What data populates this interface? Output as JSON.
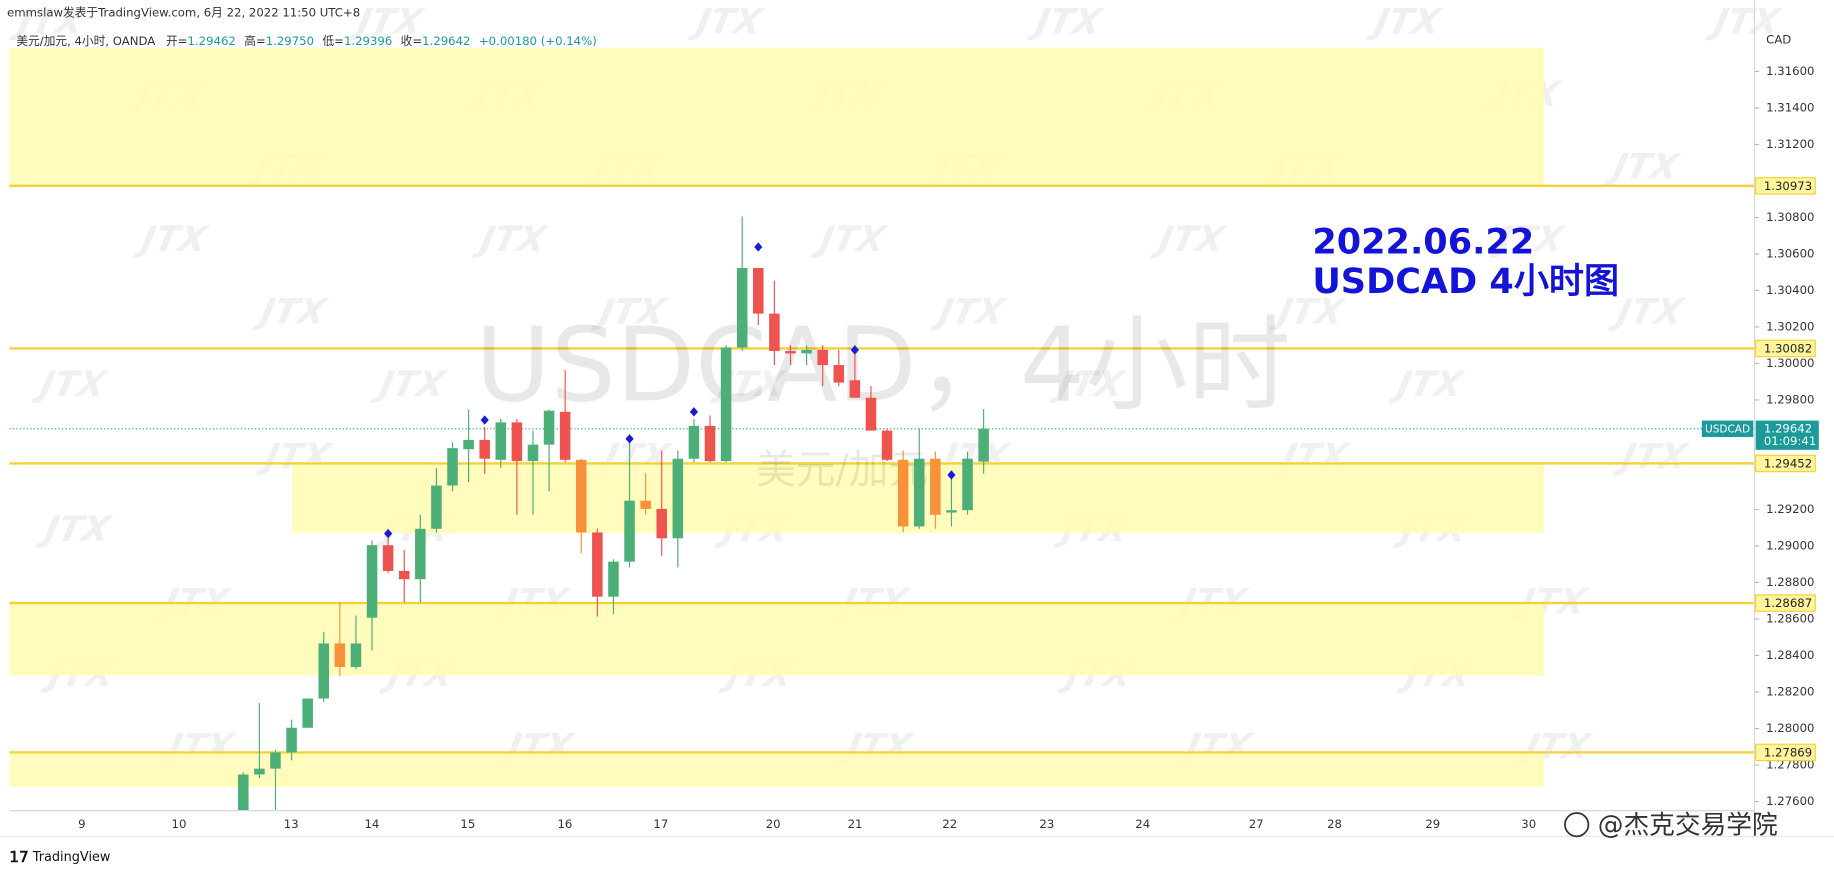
{
  "header": {
    "publisher": "emmslaw发表于TradingView.com,  6月 22, 2022 11:50 UTC+8"
  },
  "legend": {
    "symbol": "美元/加元, 4小时, OANDA",
    "open_label": "开=",
    "open": "1.29462",
    "high_label": "高=",
    "high": "1.29750",
    "low_label": "低=",
    "low": "1.29396",
    "close_label": "收=",
    "close": "1.29642",
    "change": "+0.00180 (+0.14%)"
  },
  "chart_data": {
    "type": "candlestick",
    "symbol": "USDCAD",
    "currency": "CAD",
    "countdown": "01:09:41",
    "last_price": 1.29642,
    "x_labels": [
      "9",
      "10",
      "13",
      "14",
      "15",
      "16",
      "17",
      "20",
      "21",
      "22",
      "23",
      "24",
      "27",
      "28",
      "29",
      "30"
    ],
    "open": [
      1.2755,
      1.27748,
      1.2778,
      1.27869,
      1.28004,
      1.28164,
      1.28466,
      1.28337,
      1.28607,
      1.29004,
      1.28863,
      1.28818,
      1.29094,
      1.29331,
      1.2953,
      1.29581,
      1.29472,
      1.29677,
      1.29465,
      1.29555,
      1.29735,
      1.29472,
      1.29074,
      1.28722,
      1.28914,
      1.29248,
      1.29203,
      1.29042,
      1.29478,
      1.29658,
      1.29465,
      1.30087,
      1.30523,
      1.30273,
      1.30068,
      1.30055,
      1.30074,
      1.29991,
      1.29908,
      1.29812,
      1.29632,
      1.29472,
      1.29107,
      1.29478,
      1.29183,
      1.29196,
      1.29462
    ],
    "high": [
      1.2776,
      1.28139,
      1.27882,
      1.28049,
      1.28164,
      1.2853,
      1.2869,
      1.28619,
      1.2903,
      1.29074,
      1.28978,
      1.29171,
      1.29427,
      1.29568,
      1.29748,
      1.29651,
      1.29696,
      1.29696,
      1.29632,
      1.29748,
      1.29965,
      1.29478,
      1.29094,
      1.28927,
      1.29587,
      1.29401,
      1.29523,
      1.29523,
      1.29696,
      1.29715,
      1.301,
      1.30805,
      1.30523,
      1.30453,
      1.301,
      1.301,
      1.301,
      1.30074,
      1.301,
      1.29876,
      1.29645,
      1.29523,
      1.29645,
      1.29517,
      1.29401,
      1.29517,
      1.2975
    ],
    "low": [
      1.2755,
      1.27728,
      1.2755,
      1.27825,
      1.28004,
      1.28145,
      1.28286,
      1.28324,
      1.28427,
      1.2885,
      1.2869,
      1.2869,
      1.29074,
      1.29299,
      1.2935,
      1.29395,
      1.29427,
      1.29171,
      1.29171,
      1.29299,
      1.29459,
      1.28959,
      1.28613,
      1.28626,
      1.28882,
      1.29171,
      1.28946,
      1.28882,
      1.29459,
      1.29459,
      1.29459,
      1.30068,
      1.3021,
      1.29991,
      1.29991,
      1.29991,
      1.29876,
      1.29876,
      1.29812,
      1.29632,
      1.29465,
      1.29074,
      1.29094,
      1.29094,
      1.29107,
      1.29171,
      1.29396
    ],
    "close": [
      1.27748,
      1.2778,
      1.27869,
      1.28004,
      1.28164,
      1.28466,
      1.28337,
      1.28466,
      1.29004,
      1.28863,
      1.28818,
      1.29094,
      1.29331,
      1.29536,
      1.29581,
      1.29478,
      1.29677,
      1.29465,
      1.29555,
      1.29741,
      1.29472,
      1.29074,
      1.28722,
      1.28914,
      1.29248,
      1.29203,
      1.29042,
      1.29478,
      1.29658,
      1.29465,
      1.30087,
      1.30523,
      1.30273,
      1.30068,
      1.30055,
      1.30074,
      1.29991,
      1.29895,
      1.29812,
      1.29632,
      1.29472,
      1.29107,
      1.29478,
      1.29171,
      1.29196,
      1.29478,
      1.29642
    ],
    "colors": [
      "#4caf78",
      "#4caf78",
      "#4caf78",
      "#4caf78",
      "#4caf78",
      "#4caf78",
      "#f7923a",
      "#4caf78",
      "#4caf78",
      "#ef5350",
      "#ef5350",
      "#4caf78",
      "#4caf78",
      "#4caf78",
      "#4caf78",
      "#ef5350",
      "#4caf78",
      "#ef5350",
      "#4caf78",
      "#4caf78",
      "#ef5350",
      "#f7923a",
      "#ef5350",
      "#4caf78",
      "#4caf78",
      "#f7923a",
      "#ef5350",
      "#4caf78",
      "#4caf78",
      "#ef5350",
      "#4caf78",
      "#4caf78",
      "#ef5350",
      "#ef5350",
      "#ef5350",
      "#4caf78",
      "#ef5350",
      "#ef5350",
      "#ef5350",
      "#ef5350",
      "#ef5350",
      "#f7923a",
      "#4caf78",
      "#f7923a",
      "#4caf78",
      "#4caf78",
      "#4caf78"
    ],
    "marker_values": [
      null,
      null,
      null,
      null,
      null,
      null,
      null,
      null,
      null,
      1.29068,
      null,
      null,
      null,
      null,
      null,
      1.2969,
      null,
      null,
      null,
      null,
      null,
      null,
      null,
      null,
      1.29587,
      null,
      null,
      null,
      1.29735,
      null,
      null,
      null,
      1.30638,
      null,
      null,
      null,
      null,
      null,
      1.30074,
      null,
      null,
      null,
      null,
      null,
      1.29389,
      null,
      null
    ],
    "marker_color": "#1a1adb",
    "ylim": [
      1.2755,
      1.3185
    ],
    "yticks": [
      {
        "value": 1.316,
        "label": "1.31600"
      },
      {
        "value": 1.314,
        "label": "1.31400"
      },
      {
        "value": 1.312,
        "label": "1.31200"
      },
      {
        "value": 1.308,
        "label": "1.30800"
      },
      {
        "value": 1.306,
        "label": "1.30600"
      },
      {
        "value": 1.304,
        "label": "1.30400"
      },
      {
        "value": 1.302,
        "label": "1.30200"
      },
      {
        "value": 1.3,
        "label": "1.30000"
      },
      {
        "value": 1.298,
        "label": "1.29800"
      },
      {
        "value": 1.292,
        "label": "1.29200"
      },
      {
        "value": 1.29,
        "label": "1.29000"
      },
      {
        "value": 1.288,
        "label": "1.28800"
      },
      {
        "value": 1.286,
        "label": "1.28600"
      },
      {
        "value": 1.284,
        "label": "1.28400"
      },
      {
        "value": 1.282,
        "label": "1.28200"
      },
      {
        "value": 1.28,
        "label": "1.28000"
      },
      {
        "value": 1.278,
        "label": "1.27800"
      },
      {
        "value": 1.276,
        "label": "1.27600"
      }
    ],
    "levels": [
      1.30973,
      1.30082,
      1.29452,
      1.28687,
      1.27869
    ],
    "level_color": "#f2d13a",
    "zones": [
      {
        "top": 1.3173,
        "bottom": 1.30973
      },
      {
        "top": 1.29452,
        "bottom": 1.2907
      },
      {
        "top": 1.28687,
        "bottom": 1.2829
      },
      {
        "top": 1.27869,
        "bottom": 1.2768
      }
    ],
    "zone_color": "#fffbb3",
    "price_color": "#1b9a9a",
    "annotation": [
      "2022.06.22",
      "USDCAD 4小时图"
    ],
    "annotation_color": "#1414d8",
    "watermark": "USDCAD，4小时",
    "watermark_sub": "美元/加元",
    "watermark_logo": "JTX"
  },
  "footer": {
    "brand": "TradingView",
    "credit": "@杰克交易学院"
  }
}
